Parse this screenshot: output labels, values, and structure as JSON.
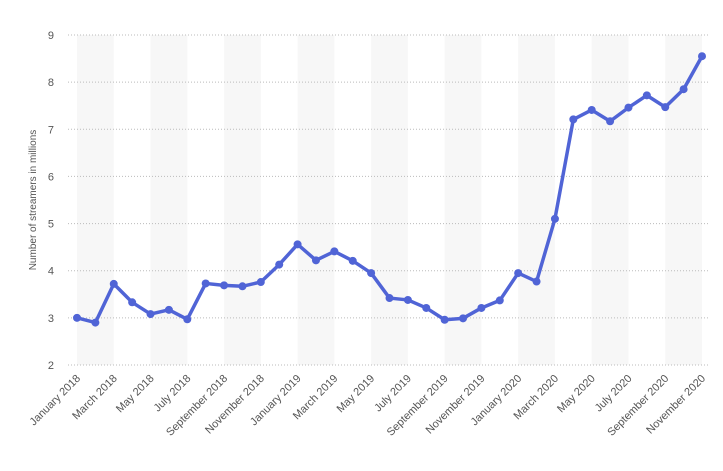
{
  "chart_data": {
    "type": "line",
    "y_label": "Number of streamers in millions",
    "categories": [
      "January 2018",
      null,
      "March 2018",
      null,
      "May 2018",
      null,
      "July 2018",
      null,
      "September 2018",
      null,
      "November 2018",
      null,
      "January 2019",
      null,
      "March 2019",
      null,
      "May 2019",
      null,
      "July 2019",
      null,
      "September 2019",
      null,
      "November 2019",
      null,
      "January 2020",
      null,
      "March 2020",
      null,
      "May 2020",
      null,
      "July 2020",
      null,
      "September 2020",
      null,
      "November 2020"
    ],
    "values": [
      3.0,
      2.9,
      3.72,
      3.33,
      3.08,
      3.17,
      2.97,
      3.73,
      3.69,
      3.67,
      3.76,
      4.13,
      4.56,
      4.22,
      4.41,
      4.21,
      3.95,
      3.42,
      3.38,
      3.21,
      2.96,
      2.99,
      3.21,
      3.37,
      3.95,
      3.77,
      5.1,
      7.21,
      7.41,
      7.17,
      7.46,
      7.72,
      7.47,
      7.85,
      8.55
    ],
    "color": "#5064d6",
    "ylim": [
      2,
      9
    ],
    "yticks": [
      2,
      3,
      4,
      5,
      6,
      7,
      8,
      9
    ],
    "grid": true
  }
}
